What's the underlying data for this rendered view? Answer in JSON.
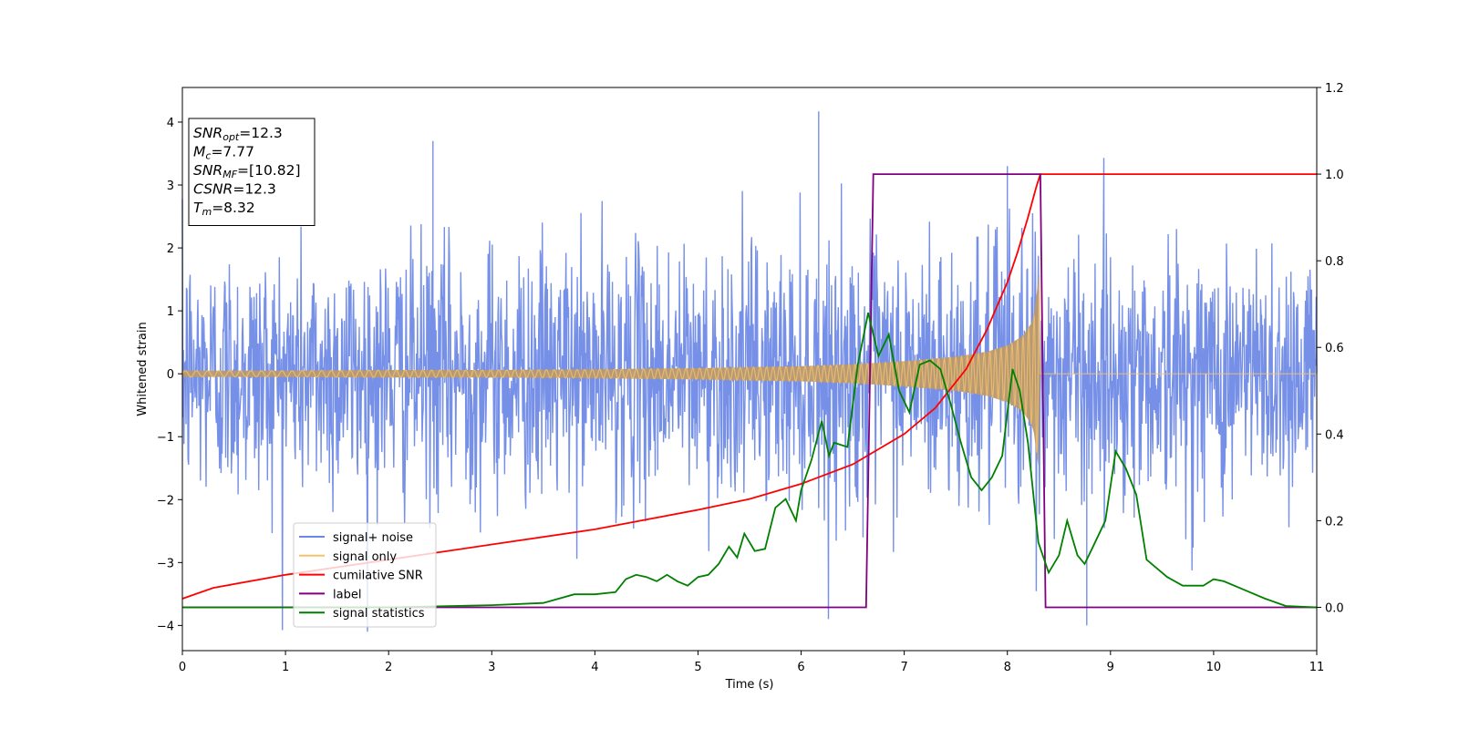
{
  "chart_data": {
    "type": "line",
    "xlabel": "Time (s)",
    "ylabel": "Whitened strain",
    "xlim": [
      0,
      11
    ],
    "ylim": [
      -4.4,
      4.55
    ],
    "ylim_right": [
      -0.1,
      1.2
    ],
    "x_ticks": [
      0,
      1,
      2,
      3,
      4,
      5,
      6,
      7,
      8,
      9,
      10,
      11
    ],
    "y_ticks": [
      -4,
      -3,
      -2,
      -1,
      0,
      1,
      2,
      3,
      4
    ],
    "y_right_ticks": [
      0.0,
      0.2,
      0.4,
      0.6,
      0.8,
      1.0,
      1.2
    ],
    "grid": false,
    "legend_position": "lower-left",
    "colors": {
      "signal_noise": "#6a87e6",
      "signal_only": "#f5c16b",
      "signal_only_fill": "#b99a6e",
      "cumulative_snr": "#ff0000",
      "label": "#800080",
      "signal_statistics": "#008000"
    },
    "annotation": {
      "lines": [
        {
          "base": "SNR",
          "sub": "opt",
          "value": "=12.3"
        },
        {
          "base": "M",
          "sub": "c",
          "value": "=7.77"
        },
        {
          "base": "SNR",
          "sub": "MF",
          "value": "=[10.82]"
        },
        {
          "base": "CSNR",
          "sub": "",
          "value": "=12.3"
        },
        {
          "base": "T",
          "sub": "m",
          "value": "=8.32"
        }
      ]
    },
    "series": [
      {
        "name": "signal+ noise",
        "axis": "left",
        "noise_band_sigma": 1.0,
        "notable_peaks": [
          {
            "x": 2.43,
            "y": 3.7
          },
          {
            "x": 6.17,
            "y": 4.17
          },
          {
            "x": 8.0,
            "y": 3.3
          },
          {
            "x": 8.77,
            "y": -4.0
          },
          {
            "x": 6.6,
            "y": -2.6
          }
        ]
      },
      {
        "name": "signal only",
        "axis": "left",
        "envelope": [
          [
            0.0,
            0.05
          ],
          [
            1.0,
            0.05
          ],
          [
            2.0,
            0.06
          ],
          [
            3.0,
            0.06
          ],
          [
            4.0,
            0.07
          ],
          [
            5.0,
            0.09
          ],
          [
            6.0,
            0.12
          ],
          [
            6.5,
            0.15
          ],
          [
            7.0,
            0.2
          ],
          [
            7.5,
            0.27
          ],
          [
            7.8,
            0.35
          ],
          [
            8.0,
            0.45
          ],
          [
            8.15,
            0.6
          ],
          [
            8.25,
            0.85
          ],
          [
            8.31,
            1.6
          ],
          [
            8.32,
            0.0
          ],
          [
            11.0,
            0.0
          ]
        ]
      },
      {
        "name": "cumilative SNR",
        "axis": "right",
        "points": [
          [
            0.0,
            0.02
          ],
          [
            0.3,
            0.045
          ],
          [
            1.0,
            0.075
          ],
          [
            2.0,
            0.11
          ],
          [
            3.0,
            0.145
          ],
          [
            4.0,
            0.18
          ],
          [
            5.0,
            0.225
          ],
          [
            5.5,
            0.25
          ],
          [
            6.0,
            0.285
          ],
          [
            6.5,
            0.33
          ],
          [
            7.0,
            0.4
          ],
          [
            7.3,
            0.46
          ],
          [
            7.6,
            0.55
          ],
          [
            7.8,
            0.64
          ],
          [
            8.0,
            0.75
          ],
          [
            8.1,
            0.82
          ],
          [
            8.2,
            0.9
          ],
          [
            8.28,
            0.97
          ],
          [
            8.32,
            1.0
          ],
          [
            11.0,
            1.0
          ]
        ]
      },
      {
        "name": "label",
        "axis": "right",
        "points": [
          [
            0.0,
            0.0
          ],
          [
            6.63,
            0.0
          ],
          [
            6.7,
            1.0
          ],
          [
            8.32,
            1.0
          ],
          [
            8.37,
            0.0
          ],
          [
            11.0,
            0.0
          ]
        ]
      },
      {
        "name": "signal statistics",
        "axis": "right",
        "points": [
          [
            0.0,
            0.0
          ],
          [
            1.0,
            0.0
          ],
          [
            2.0,
            0.0
          ],
          [
            3.0,
            0.005
          ],
          [
            3.5,
            0.01
          ],
          [
            3.8,
            0.03
          ],
          [
            4.0,
            0.03
          ],
          [
            4.2,
            0.035
          ],
          [
            4.3,
            0.065
          ],
          [
            4.4,
            0.075
          ],
          [
            4.5,
            0.07
          ],
          [
            4.6,
            0.06
          ],
          [
            4.7,
            0.075
          ],
          [
            4.8,
            0.06
          ],
          [
            4.9,
            0.05
          ],
          [
            5.0,
            0.07
          ],
          [
            5.1,
            0.075
          ],
          [
            5.2,
            0.1
          ],
          [
            5.3,
            0.14
          ],
          [
            5.38,
            0.115
          ],
          [
            5.45,
            0.17
          ],
          [
            5.55,
            0.13
          ],
          [
            5.65,
            0.135
          ],
          [
            5.75,
            0.23
          ],
          [
            5.85,
            0.25
          ],
          [
            5.95,
            0.2
          ],
          [
            6.0,
            0.27
          ],
          [
            6.1,
            0.34
          ],
          [
            6.2,
            0.43
          ],
          [
            6.27,
            0.35
          ],
          [
            6.32,
            0.38
          ],
          [
            6.45,
            0.37
          ],
          [
            6.55,
            0.56
          ],
          [
            6.65,
            0.68
          ],
          [
            6.75,
            0.58
          ],
          [
            6.85,
            0.63
          ],
          [
            6.95,
            0.5
          ],
          [
            7.05,
            0.45
          ],
          [
            7.15,
            0.56
          ],
          [
            7.25,
            0.57
          ],
          [
            7.35,
            0.55
          ],
          [
            7.45,
            0.47
          ],
          [
            7.55,
            0.38
          ],
          [
            7.65,
            0.3
          ],
          [
            7.75,
            0.27
          ],
          [
            7.85,
            0.3
          ],
          [
            7.95,
            0.35
          ],
          [
            8.05,
            0.55
          ],
          [
            8.12,
            0.5
          ],
          [
            8.2,
            0.38
          ],
          [
            8.3,
            0.15
          ],
          [
            8.4,
            0.08
          ],
          [
            8.5,
            0.12
          ],
          [
            8.58,
            0.2
          ],
          [
            8.68,
            0.12
          ],
          [
            8.75,
            0.1
          ],
          [
            8.85,
            0.15
          ],
          [
            8.95,
            0.2
          ],
          [
            9.05,
            0.36
          ],
          [
            9.15,
            0.32
          ],
          [
            9.25,
            0.26
          ],
          [
            9.35,
            0.11
          ],
          [
            9.45,
            0.09
          ],
          [
            9.55,
            0.07
          ],
          [
            9.7,
            0.05
          ],
          [
            9.9,
            0.05
          ],
          [
            10.0,
            0.065
          ],
          [
            10.1,
            0.06
          ],
          [
            10.3,
            0.04
          ],
          [
            10.5,
            0.02
          ],
          [
            10.7,
            0.003
          ],
          [
            11.0,
            0.0
          ]
        ]
      }
    ]
  }
}
